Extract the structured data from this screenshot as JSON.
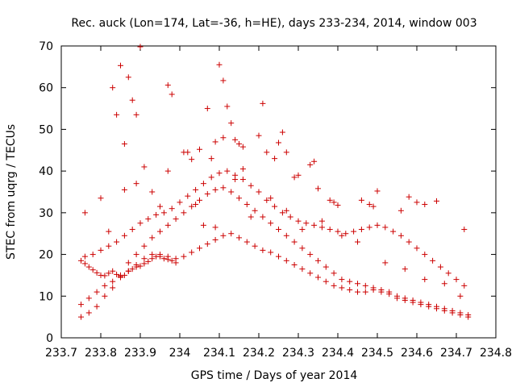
{
  "chart_data": {
    "type": "scatter",
    "title": "Rec. auck (Lon=174, Lat=-36, h=HE), days 233-234, 2014, window 003",
    "xlabel": "GPS time / Days of year 2014",
    "ylabel": "STEC from uqrg / TECUs",
    "xlim": [
      233.7,
      234.8
    ],
    "ylim": [
      0,
      70
    ],
    "xticks": [
      "233.7",
      "233.8",
      "233.9",
      "234",
      "234.1",
      "234.2",
      "234.3",
      "234.4",
      "234.5",
      "234.6",
      "234.7",
      "234.8"
    ],
    "yticks": [
      "0",
      "10",
      "20",
      "30",
      "40",
      "50",
      "60",
      "70"
    ],
    "marker": "+",
    "color": "#cc0000",
    "grid": false,
    "series": [
      {
        "x": [
          233.75,
          233.76,
          233.77,
          233.78,
          233.79,
          233.8,
          233.81,
          233.82,
          233.83,
          233.84,
          233.85,
          233.86,
          233.87,
          233.88,
          233.89,
          233.9,
          233.91,
          233.92,
          233.93,
          233.94,
          233.95,
          233.96,
          233.97,
          233.98,
          233.99,
          233.75,
          233.77,
          233.79,
          233.81,
          233.83,
          233.85,
          233.87,
          233.89,
          233.91,
          233.93,
          233.95,
          233.97,
          233.99,
          234.01,
          234.03,
          234.05,
          234.07,
          234.09,
          234.11,
          234.13,
          234.15,
          234.17,
          234.19,
          234.21,
          234.23,
          234.25,
          234.27,
          234.29,
          234.31,
          234.33,
          234.35,
          234.37,
          234.39,
          234.41,
          234.43,
          234.45,
          234.47,
          234.49,
          234.51,
          234.53,
          234.55,
          234.57,
          234.59,
          234.61,
          234.63,
          234.65,
          234.67,
          234.69,
          234.71,
          234.73,
          233.75,
          233.77,
          233.79,
          233.81,
          233.83,
          233.85,
          233.87,
          233.89,
          233.91,
          233.93,
          233.95,
          233.97,
          233.99,
          234.01,
          234.03,
          234.05,
          234.07,
          234.09,
          234.11,
          234.13,
          234.15,
          234.17,
          234.19,
          234.21,
          234.23,
          234.25,
          234.27,
          234.29,
          234.31,
          234.33,
          234.35,
          234.37,
          234.39,
          234.41,
          234.43,
          234.45,
          234.47,
          234.49,
          234.51,
          234.53,
          234.55,
          234.57,
          234.59,
          234.61,
          234.63,
          234.65,
          234.67,
          234.69,
          234.71,
          234.73,
          233.76,
          233.78,
          233.8,
          233.82,
          233.84,
          233.86,
          233.88,
          233.9,
          233.92,
          233.94,
          233.96,
          233.98,
          234.0,
          234.02,
          234.04,
          234.06,
          234.08,
          234.1,
          234.12,
          234.14,
          234.16,
          234.18,
          234.2,
          234.22,
          234.24,
          234.26,
          234.28,
          234.3,
          234.32,
          234.34,
          234.36,
          234.38,
          234.4,
          234.42,
          234.44,
          234.46,
          234.48,
          234.5,
          234.52,
          234.54,
          234.56,
          234.58,
          234.6,
          234.62,
          234.64,
          234.66,
          234.68,
          234.7,
          234.72,
          233.83,
          233.84,
          233.85,
          233.86,
          233.87,
          233.88,
          233.89,
          233.9,
          233.97,
          233.98,
          234.01,
          234.03,
          234.05,
          234.07,
          234.08,
          234.09,
          234.1,
          234.11,
          234.12,
          234.13,
          234.14,
          234.15,
          234.16,
          234.2,
          234.21,
          234.22,
          234.24,
          234.25,
          234.26,
          234.27,
          234.29,
          234.3,
          234.33,
          234.34,
          234.35,
          234.38,
          234.39,
          234.4,
          234.46,
          234.48,
          234.49,
          234.5,
          234.56,
          234.58,
          234.6,
          234.62,
          234.65,
          234.72,
          233.76,
          233.8,
          233.82,
          233.86,
          233.89,
          233.91,
          233.93,
          233.95,
          233.97,
          234.02,
          234.04,
          234.06,
          234.09,
          234.11,
          234.14,
          234.16,
          234.18,
          234.23,
          234.27,
          234.31,
          234.36,
          234.41,
          234.45,
          234.52,
          234.57,
          234.62,
          234.67,
          234.71
        ],
        "y": [
          18.5,
          17.8,
          17.0,
          16.3,
          15.6,
          15.0,
          14.9,
          15.5,
          16.0,
          15.2,
          14.7,
          15.0,
          16.0,
          16.5,
          17.0,
          17.2,
          17.8,
          18.3,
          19.0,
          19.5,
          19.5,
          19.0,
          18.8,
          18.5,
          18.0,
          8.0,
          9.5,
          11.0,
          12.5,
          13.5,
          14.5,
          16.0,
          17.5,
          19.0,
          20.0,
          20.0,
          19.5,
          19.0,
          19.5,
          20.5,
          21.5,
          22.5,
          23.5,
          24.5,
          25.0,
          24.0,
          23.0,
          22.0,
          21.0,
          20.5,
          19.5,
          18.5,
          17.5,
          16.5,
          15.5,
          14.5,
          13.5,
          12.5,
          12.0,
          11.5,
          11.0,
          11.0,
          11.5,
          11.0,
          10.5,
          9.5,
          9.0,
          8.5,
          8.0,
          7.5,
          7.0,
          6.5,
          6.0,
          5.5,
          5.0,
          5.0,
          6.0,
          7.5,
          10.0,
          12.0,
          15.0,
          18.0,
          20.0,
          22.0,
          24.0,
          25.5,
          27.0,
          28.5,
          30.0,
          31.5,
          33.0,
          34.5,
          35.5,
          36.0,
          35.0,
          33.5,
          32.0,
          30.5,
          29.0,
          27.5,
          26.0,
          24.5,
          23.0,
          21.5,
          20.0,
          18.5,
          17.0,
          15.5,
          14.0,
          13.5,
          13.0,
          12.5,
          12.0,
          11.5,
          11.0,
          10.0,
          9.5,
          9.0,
          8.5,
          8.0,
          7.5,
          7.0,
          6.5,
          6.0,
          5.5,
          19.5,
          20.0,
          21.0,
          22.0,
          23.0,
          24.5,
          26.0,
          27.5,
          28.5,
          29.5,
          30.0,
          31.0,
          32.5,
          34.0,
          35.5,
          37.0,
          38.5,
          39.5,
          40.0,
          39.0,
          38.0,
          36.5,
          35.0,
          33.0,
          31.5,
          30.0,
          29.0,
          28.0,
          27.5,
          27.0,
          26.5,
          26.0,
          25.5,
          25.0,
          25.5,
          26.0,
          26.5,
          27.0,
          26.5,
          25.5,
          24.5,
          23.0,
          21.5,
          20.0,
          18.5,
          17.0,
          15.5,
          14.0,
          12.5,
          60.0,
          53.5,
          65.3,
          46.5,
          62.5,
          57.0,
          53.5,
          69.8,
          60.6,
          58.4,
          44.5,
          42.8,
          45.2,
          55.0,
          43.0,
          47.0,
          65.5,
          61.7,
          55.5,
          51.5,
          47.5,
          46.5,
          45.8,
          48.5,
          56.2,
          44.5,
          43.0,
          46.8,
          49.3,
          44.5,
          38.5,
          39.0,
          41.5,
          42.3,
          35.8,
          33.0,
          32.5,
          31.8,
          33.0,
          32.0,
          31.5,
          35.2,
          30.5,
          33.8,
          32.5,
          32.0,
          32.8,
          26.0,
          30.0,
          33.5,
          25.5,
          35.5,
          37.0,
          41.0,
          35.0,
          31.5,
          40.0,
          44.5,
          32.0,
          27.0,
          26.5,
          48.0,
          38.0,
          40.5,
          29.0,
          33.5,
          30.5,
          26.0,
          28.0,
          24.5,
          23.0,
          18.0,
          16.5,
          14.0,
          13.0,
          10.0
        ]
      }
    ]
  }
}
